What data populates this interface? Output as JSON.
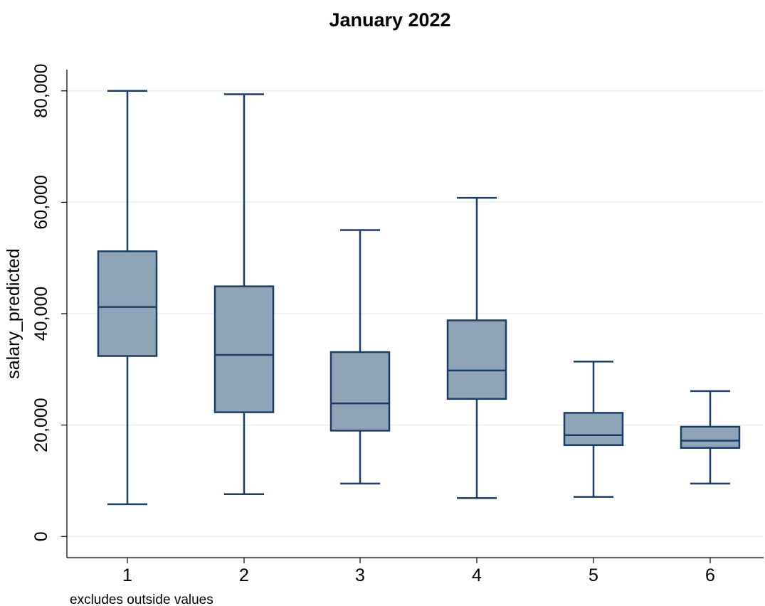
{
  "chart_data": {
    "type": "boxplot",
    "title": "January 2022",
    "xlabel": "",
    "ylabel": "salary_predicted",
    "note": "excludes outside values",
    "ylim": [
      -3800,
      83800
    ],
    "yticks": [
      0,
      20000,
      40000,
      60000,
      80000
    ],
    "ytick_labels": [
      "0",
      "20,000",
      "40,000",
      "60,000",
      "80,000"
    ],
    "grid": true,
    "categories": [
      "1",
      "2",
      "3",
      "4",
      "5",
      "6"
    ],
    "boxes": [
      {
        "category": "1",
        "whisker_low": 5800,
        "q1": 32400,
        "median": 41200,
        "q3": 51200,
        "whisker_high": 80000
      },
      {
        "category": "2",
        "whisker_low": 7600,
        "q1": 22300,
        "median": 32600,
        "q3": 44900,
        "whisker_high": 79400
      },
      {
        "category": "3",
        "whisker_low": 9500,
        "q1": 19000,
        "median": 23900,
        "q3": 33100,
        "whisker_high": 55000
      },
      {
        "category": "4",
        "whisker_low": 6900,
        "q1": 24700,
        "median": 29800,
        "q3": 38800,
        "whisker_high": 60800
      },
      {
        "category": "5",
        "whisker_low": 7100,
        "q1": 16400,
        "median": 18200,
        "q3": 22200,
        "whisker_high": 31400
      },
      {
        "category": "6",
        "whisker_low": 9500,
        "q1": 15900,
        "median": 17200,
        "q3": 19700,
        "whisker_high": 26100
      }
    ],
    "colors": {
      "box_fill": "#90a4b8",
      "box_stroke": "#1a3e66",
      "grid": "#e8eff1",
      "axis": "#000000"
    }
  }
}
